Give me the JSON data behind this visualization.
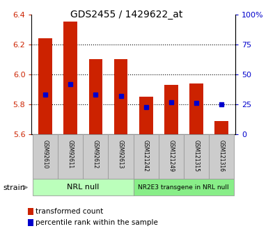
{
  "title": "GDS2455 / 1429622_at",
  "samples": [
    "GSM92610",
    "GSM92611",
    "GSM92612",
    "GSM92613",
    "GSM121242",
    "GSM121249",
    "GSM121315",
    "GSM121316"
  ],
  "transformed_counts": [
    6.24,
    6.35,
    6.1,
    6.1,
    5.85,
    5.93,
    5.94,
    5.69
  ],
  "percentile_ranks": [
    33,
    42,
    33,
    32,
    23,
    27,
    26,
    25
  ],
  "ylim_left": [
    5.6,
    6.4
  ],
  "ylim_right": [
    0,
    100
  ],
  "yticks_left": [
    5.6,
    5.8,
    6.0,
    6.2,
    6.4
  ],
  "yticks_right": [
    0,
    25,
    50,
    75,
    100
  ],
  "yticklabels_right": [
    "0",
    "25",
    "50",
    "75",
    "100%"
  ],
  "bar_color": "#cc2200",
  "blue_marker_color": "#0000cc",
  "group_labels": [
    "NRL null",
    "NR2E3 transgene in NRL null"
  ],
  "group_ranges": [
    [
      0,
      3
    ],
    [
      4,
      7
    ]
  ],
  "group_colors": [
    "#bbffbb",
    "#88ee88"
  ],
  "xlabel_strain": "strain",
  "legend_items": [
    "transformed count",
    "percentile rank within the sample"
  ],
  "legend_colors": [
    "#cc2200",
    "#0000cc"
  ],
  "tick_color_left": "#cc2200",
  "tick_color_right": "#0000cc",
  "bar_width": 0.55,
  "base_value": 5.6,
  "label_bg_color": "#cccccc",
  "label_border_color": "#999999",
  "spine_color": "#000000"
}
